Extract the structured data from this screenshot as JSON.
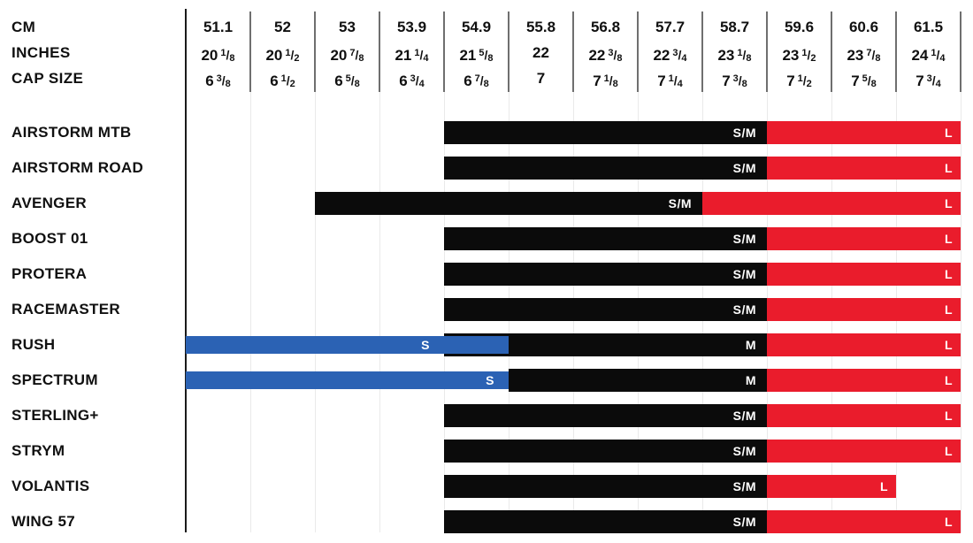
{
  "colors": {
    "black": "#0b0b0b",
    "red": "#ea1c2c",
    "blue": "#2b62b4",
    "bar_label": "#ffffff",
    "text": "#101010",
    "grid_axis": "#1a1a1a",
    "grid_header": "#6f6f6f",
    "grid_body": "#eaeaea"
  },
  "header": {
    "row_labels": [
      "CM",
      "INCHES",
      "CAP SIZE"
    ]
  },
  "chart_data": {
    "type": "bar",
    "variant": "horizontal-range-size-chart",
    "grid": "vertical-only",
    "size_key": {
      "S": "blue",
      "M": "black",
      "S/M": "black",
      "L": "red"
    },
    "columns": [
      {
        "cm": "51.1",
        "in_whole": "20",
        "in_num": "1",
        "in_den": "8",
        "cap_whole": "6",
        "cap_num": "3",
        "cap_den": "8"
      },
      {
        "cm": "52",
        "in_whole": "20",
        "in_num": "1",
        "in_den": "2",
        "cap_whole": "6",
        "cap_num": "1",
        "cap_den": "2"
      },
      {
        "cm": "53",
        "in_whole": "20",
        "in_num": "7",
        "in_den": "8",
        "cap_whole": "6",
        "cap_num": "5",
        "cap_den": "8"
      },
      {
        "cm": "53.9",
        "in_whole": "21",
        "in_num": "1",
        "in_den": "4",
        "cap_whole": "6",
        "cap_num": "3",
        "cap_den": "4"
      },
      {
        "cm": "54.9",
        "in_whole": "21",
        "in_num": "5",
        "in_den": "8",
        "cap_whole": "6",
        "cap_num": "7",
        "cap_den": "8"
      },
      {
        "cm": "55.8",
        "in_whole": "22",
        "in_num": "",
        "in_den": "",
        "cap_whole": "7",
        "cap_num": "",
        "cap_den": ""
      },
      {
        "cm": "56.8",
        "in_whole": "22",
        "in_num": "3",
        "in_den": "8",
        "cap_whole": "7",
        "cap_num": "1",
        "cap_den": "8"
      },
      {
        "cm": "57.7",
        "in_whole": "22",
        "in_num": "3",
        "in_den": "4",
        "cap_whole": "7",
        "cap_num": "1",
        "cap_den": "4"
      },
      {
        "cm": "58.7",
        "in_whole": "23",
        "in_num": "1",
        "in_den": "8",
        "cap_whole": "7",
        "cap_num": "3",
        "cap_den": "8"
      },
      {
        "cm": "59.6",
        "in_whole": "23",
        "in_num": "1",
        "in_den": "2",
        "cap_whole": "7",
        "cap_num": "1",
        "cap_den": "2"
      },
      {
        "cm": "60.6",
        "in_whole": "23",
        "in_num": "7",
        "in_den": "8",
        "cap_whole": "7",
        "cap_num": "5",
        "cap_den": "8"
      },
      {
        "cm": "61.5",
        "in_whole": "24",
        "in_num": "1",
        "in_den": "4",
        "cap_whole": "7",
        "cap_num": "3",
        "cap_den": "4"
      }
    ],
    "rows": [
      {
        "model": "AIRSTORM MTB",
        "segments": [
          {
            "color": "black",
            "label": "S/M",
            "from": "54.9",
            "to": "58.7"
          },
          {
            "color": "red",
            "label": "L",
            "from": "59.6",
            "to": "61.5"
          }
        ]
      },
      {
        "model": "AIRSTORM ROAD",
        "segments": [
          {
            "color": "black",
            "label": "S/M",
            "from": "54.9",
            "to": "58.7"
          },
          {
            "color": "red",
            "label": "L",
            "from": "59.6",
            "to": "61.5"
          }
        ]
      },
      {
        "model": "AVENGER",
        "segments": [
          {
            "color": "black",
            "label": "S/M",
            "from": "53",
            "to": "57.7"
          },
          {
            "color": "red",
            "label": "L",
            "from": "58.7",
            "to": "61.5"
          }
        ]
      },
      {
        "model": "BOOST 01",
        "segments": [
          {
            "color": "black",
            "label": "S/M",
            "from": "54.9",
            "to": "58.7"
          },
          {
            "color": "red",
            "label": "L",
            "from": "59.6",
            "to": "61.5"
          }
        ]
      },
      {
        "model": "PROTERA",
        "segments": [
          {
            "color": "black",
            "label": "S/M",
            "from": "54.9",
            "to": "58.7"
          },
          {
            "color": "red",
            "label": "L",
            "from": "59.6",
            "to": "61.5"
          }
        ]
      },
      {
        "model": "RACEMASTER",
        "segments": [
          {
            "color": "black",
            "label": "S/M",
            "from": "54.9",
            "to": "58.7"
          },
          {
            "color": "red",
            "label": "L",
            "from": "59.6",
            "to": "61.5"
          }
        ]
      },
      {
        "model": "RUSH",
        "segments": [
          {
            "color": "blue",
            "label": "S",
            "from": "51.1",
            "to": "54.9",
            "label_end": "53.9"
          },
          {
            "color": "black",
            "label": "M",
            "from": "54.9",
            "to": "58.7"
          },
          {
            "color": "red",
            "label": "L",
            "from": "59.6",
            "to": "61.5"
          }
        ]
      },
      {
        "model": "SPECTRUM",
        "segments": [
          {
            "color": "blue",
            "label": "S",
            "from": "51.1",
            "to": "54.9"
          },
          {
            "color": "black",
            "label": "M",
            "from": "55.8",
            "to": "58.7"
          },
          {
            "color": "red",
            "label": "L",
            "from": "59.6",
            "to": "61.5"
          }
        ]
      },
      {
        "model": "STERLING+",
        "segments": [
          {
            "color": "black",
            "label": "S/M",
            "from": "54.9",
            "to": "58.7"
          },
          {
            "color": "red",
            "label": "L",
            "from": "59.6",
            "to": "61.5"
          }
        ]
      },
      {
        "model": "STRYM",
        "segments": [
          {
            "color": "black",
            "label": "S/M",
            "from": "54.9",
            "to": "58.7"
          },
          {
            "color": "red",
            "label": "L",
            "from": "59.6",
            "to": "61.5"
          }
        ]
      },
      {
        "model": "VOLANTIS",
        "segments": [
          {
            "color": "black",
            "label": "S/M",
            "from": "54.9",
            "to": "58.7"
          },
          {
            "color": "red",
            "label": "L",
            "from": "59.6",
            "to": "60.6"
          }
        ]
      },
      {
        "model": "WING 57",
        "segments": [
          {
            "color": "black",
            "label": "S/M",
            "from": "54.9",
            "to": "58.7"
          },
          {
            "color": "red",
            "label": "L",
            "from": "59.6",
            "to": "61.5"
          }
        ]
      }
    ]
  }
}
